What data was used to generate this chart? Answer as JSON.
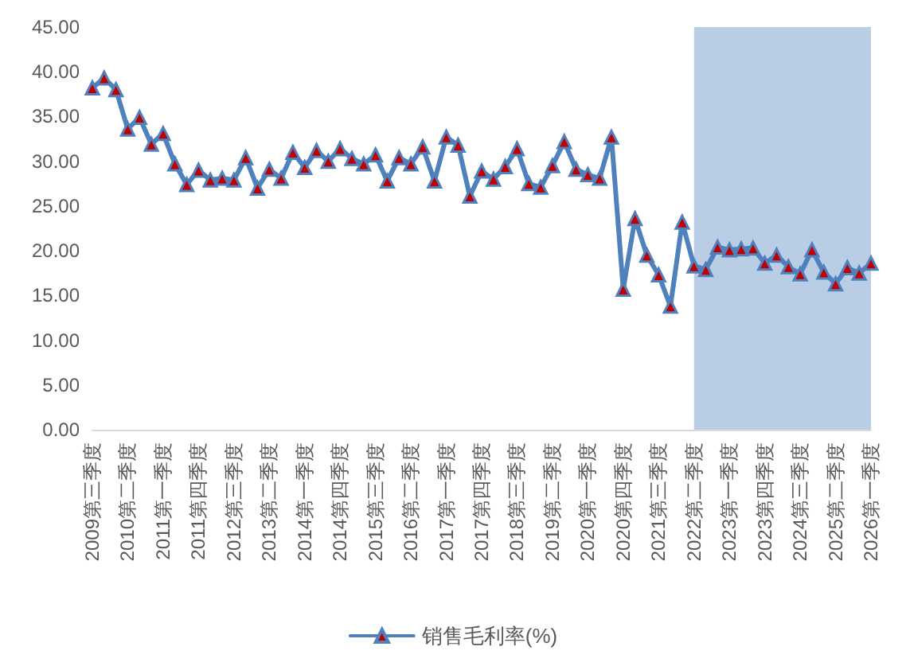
{
  "chart_data": {
    "type": "line",
    "categories": [
      "2009第三季度",
      null,
      null,
      "2010第二季度",
      null,
      null,
      "2011第一季度",
      null,
      null,
      "2011第四季度",
      null,
      null,
      "2012第三季度",
      null,
      null,
      "2013第二季度",
      null,
      null,
      "2014第一季度",
      null,
      null,
      "2014第四季度",
      null,
      null,
      "2015第三季度",
      null,
      null,
      "2016第二季度",
      null,
      null,
      "2017第一季度",
      null,
      null,
      "2017第四季度",
      null,
      null,
      "2018第三季度",
      null,
      null,
      "2019第二季度",
      null,
      null,
      "2020第一季度",
      null,
      null,
      "2020第四季度",
      null,
      null,
      "2021第三季度",
      null,
      null,
      "2022第二季度",
      null,
      null,
      "2023第一季度",
      null,
      null,
      "2023第四季度",
      null,
      null,
      "2024第三季度",
      null,
      null,
      "2025第二季度",
      null,
      null,
      "2026第一季度"
    ],
    "series": [
      {
        "name": "销售毛利率(%)",
        "color": "#4f81bd",
        "values": [
          38.2,
          39.3,
          38.0,
          33.6,
          34.9,
          31.9,
          33.1,
          29.7,
          27.4,
          29.0,
          27.9,
          28.1,
          27.9,
          30.4,
          27.0,
          29.1,
          28.1,
          31.0,
          29.3,
          31.2,
          30.0,
          31.4,
          30.3,
          29.7,
          30.7,
          27.8,
          30.4,
          29.7,
          31.6,
          27.8,
          32.7,
          31.8,
          26.1,
          28.9,
          28.0,
          29.4,
          31.4,
          27.5,
          27.1,
          29.5,
          32.2,
          29.1,
          28.5,
          28.1,
          32.7,
          15.7,
          23.6,
          19.5,
          17.3,
          13.8,
          23.2,
          18.3,
          17.9,
          20.4,
          20.1,
          20.2,
          20.3,
          18.6,
          19.5,
          18.2,
          17.4,
          20.1,
          17.6,
          16.3,
          18.1,
          17.5,
          18.6
        ]
      }
    ],
    "ylim": [
      0,
      45
    ],
    "yticks": [
      {
        "value": 0,
        "label": "0.00"
      },
      {
        "value": 5,
        "label": "5.00"
      },
      {
        "value": 10,
        "label": "10.00"
      },
      {
        "value": 15,
        "label": "15.00"
      },
      {
        "value": 20,
        "label": "20.00"
      },
      {
        "value": 25,
        "label": "25.00"
      },
      {
        "value": 30,
        "label": "30.00"
      },
      {
        "value": 35,
        "label": "35.00"
      },
      {
        "value": 40,
        "label": "40.00"
      },
      {
        "value": 45,
        "label": "45.00"
      }
    ],
    "bands": [
      {
        "axis": "x",
        "from": "2022第二季度",
        "to": "2026第一季度",
        "color": "#b9cde5"
      }
    ],
    "grid": false,
    "legend": "bottom",
    "marker": "triangle",
    "line_style": "solid"
  }
}
